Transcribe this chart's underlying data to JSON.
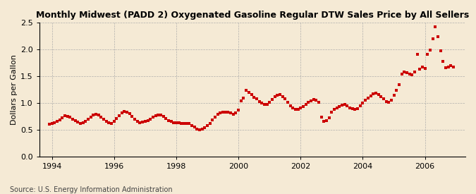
{
  "title": "Monthly Midwest (PADD 2) Oxygenated Gasoline Regular DTW Sales Price by All Sellers",
  "ylabel": "Dollars per Gallon",
  "source": "Source: U.S. Energy Information Administration",
  "background_color": "#f5ead5",
  "marker_color": "#cc0000",
  "ylim": [
    0.0,
    2.5
  ],
  "yticks": [
    0.0,
    0.5,
    1.0,
    1.5,
    2.0,
    2.5
  ],
  "xticks": [
    1994,
    1996,
    1998,
    2000,
    2002,
    2004,
    2006
  ],
  "xlim_start": 1993.6,
  "xlim_end": 2007.3,
  "dates": [
    1993.917,
    1994.0,
    1994.083,
    1994.167,
    1994.25,
    1994.333,
    1994.417,
    1994.5,
    1994.583,
    1994.667,
    1994.75,
    1994.833,
    1994.917,
    1995.0,
    1995.083,
    1995.167,
    1995.25,
    1995.333,
    1995.417,
    1995.5,
    1995.583,
    1995.667,
    1995.75,
    1995.833,
    1995.917,
    1996.0,
    1996.083,
    1996.167,
    1996.25,
    1996.333,
    1996.417,
    1996.5,
    1996.583,
    1996.667,
    1996.75,
    1996.833,
    1996.917,
    1997.0,
    1997.083,
    1997.167,
    1997.25,
    1997.333,
    1997.417,
    1997.5,
    1997.583,
    1997.667,
    1997.75,
    1997.833,
    1997.917,
    1998.0,
    1998.083,
    1998.167,
    1998.25,
    1998.333,
    1998.417,
    1998.5,
    1998.583,
    1998.667,
    1998.75,
    1998.833,
    1998.917,
    1999.0,
    1999.083,
    1999.167,
    1999.25,
    1999.333,
    1999.417,
    1999.5,
    1999.583,
    1999.667,
    1999.75,
    1999.833,
    1999.917,
    2000.0,
    2000.083,
    2000.167,
    2000.25,
    2000.333,
    2000.417,
    2000.5,
    2000.583,
    2000.667,
    2000.75,
    2000.833,
    2000.917,
    2001.0,
    2001.083,
    2001.167,
    2001.25,
    2001.333,
    2001.417,
    2001.5,
    2001.583,
    2001.667,
    2001.75,
    2001.833,
    2001.917,
    2002.0,
    2002.083,
    2002.167,
    2002.25,
    2002.333,
    2002.417,
    2002.5,
    2002.583,
    2002.667,
    2002.75,
    2002.833,
    2002.917,
    2003.0,
    2003.083,
    2003.167,
    2003.25,
    2003.333,
    2003.417,
    2003.5,
    2003.583,
    2003.667,
    2003.75,
    2003.833,
    2003.917,
    2004.0,
    2004.083,
    2004.167,
    2004.25,
    2004.333,
    2004.417,
    2004.5,
    2004.583,
    2004.667,
    2004.75,
    2004.833,
    2004.917,
    2005.0,
    2005.083,
    2005.167,
    2005.25,
    2005.333,
    2005.417,
    2005.5,
    2005.583,
    2005.667,
    2005.75,
    2005.833,
    2005.917,
    2006.0,
    2006.083,
    2006.167,
    2006.25,
    2006.333,
    2006.417,
    2006.5,
    2006.583,
    2006.667,
    2006.75,
    2006.833,
    2006.917
  ],
  "values": [
    0.6,
    0.61,
    0.63,
    0.65,
    0.68,
    0.72,
    0.76,
    0.75,
    0.73,
    0.7,
    0.67,
    0.64,
    0.62,
    0.63,
    0.66,
    0.7,
    0.74,
    0.77,
    0.79,
    0.77,
    0.74,
    0.7,
    0.66,
    0.63,
    0.62,
    0.66,
    0.71,
    0.76,
    0.81,
    0.84,
    0.83,
    0.8,
    0.75,
    0.7,
    0.65,
    0.63,
    0.64,
    0.65,
    0.67,
    0.7,
    0.73,
    0.76,
    0.78,
    0.78,
    0.75,
    0.71,
    0.67,
    0.65,
    0.63,
    0.63,
    0.63,
    0.61,
    0.61,
    0.62,
    0.61,
    0.58,
    0.55,
    0.51,
    0.5,
    0.51,
    0.53,
    0.57,
    0.62,
    0.68,
    0.74,
    0.79,
    0.81,
    0.82,
    0.83,
    0.82,
    0.81,
    0.79,
    0.81,
    0.87,
    1.04,
    1.09,
    1.24,
    1.2,
    1.15,
    1.1,
    1.07,
    1.03,
    1.0,
    0.97,
    0.97,
    1.01,
    1.06,
    1.11,
    1.14,
    1.15,
    1.12,
    1.07,
    1.01,
    0.95,
    0.91,
    0.88,
    0.88,
    0.9,
    0.93,
    0.97,
    1.01,
    1.04,
    1.06,
    1.05,
    1.01,
    0.73,
    0.65,
    0.67,
    0.72,
    0.83,
    0.88,
    0.91,
    0.93,
    0.96,
    0.97,
    0.94,
    0.91,
    0.89,
    0.88,
    0.89,
    0.94,
    1.0,
    1.05,
    1.09,
    1.13,
    1.17,
    1.18,
    1.15,
    1.11,
    1.07,
    1.03,
    1.01,
    1.05,
    1.14,
    1.24,
    1.34,
    1.54,
    1.58,
    1.56,
    1.54,
    1.52,
    1.58,
    1.9,
    1.63,
    1.67,
    1.64,
    1.91,
    1.98,
    2.2,
    2.42,
    2.24,
    1.97,
    1.77,
    1.65,
    1.67,
    1.7,
    1.67
  ]
}
